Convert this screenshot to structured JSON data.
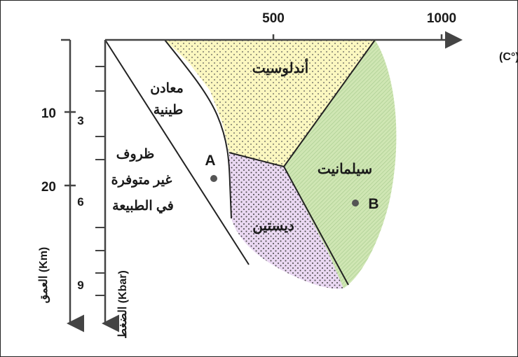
{
  "diagram": {
    "temperature_axis": {
      "label": "الحرارة (°C)",
      "ticks": [
        "500",
        "1000"
      ]
    },
    "depth_axis": {
      "label": "العمق (Km)",
      "ticks": [
        "10",
        "20"
      ]
    },
    "pressure_axis": {
      "label": "الضغط (Kbar)",
      "ticks": [
        "3",
        "6",
        "9"
      ]
    },
    "zones": {
      "andalusite": "أندلوسيت",
      "sillimanite": "سيلمانيت",
      "kyanite": "ديستين",
      "clay_minerals_line1": "معادن",
      "clay_minerals_line2": "طينية",
      "unavailable_line1": "ظروف",
      "unavailable_line2": "غير متوفرة",
      "unavailable_line3": "في الطبيعة"
    },
    "points": {
      "a": "A",
      "b": "B"
    },
    "colors": {
      "andalusite_fill": "#fbf7c0",
      "sillimanite_fill": "#cfe6b3",
      "kyanite_fill": "#ead8f2",
      "dots": "#555555"
    }
  }
}
